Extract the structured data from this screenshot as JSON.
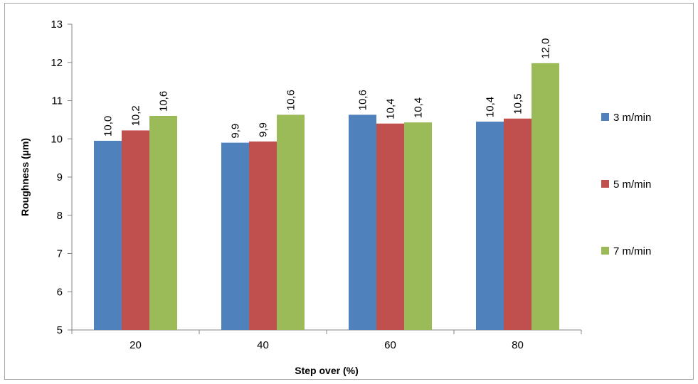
{
  "chart_data": {
    "type": "bar",
    "title": "",
    "xlabel": "Step over (%)",
    "ylabel": "Roughness (µm)",
    "categories": [
      "20",
      "40",
      "60",
      "80"
    ],
    "series": [
      {
        "name": "3 m/min",
        "color": "#4f81bd",
        "values": [
          9.95,
          9.9,
          10.63,
          10.45
        ],
        "labels": [
          "10,0",
          "9,9",
          "10,6",
          "10,4"
        ]
      },
      {
        "name": "5 m/min",
        "color": "#c0504d",
        "values": [
          10.22,
          9.93,
          10.4,
          10.53
        ],
        "labels": [
          "10,2",
          "9,9",
          "10,4",
          "10,5"
        ]
      },
      {
        "name": "7 m/min",
        "color": "#9bbb59",
        "values": [
          10.6,
          10.63,
          10.43,
          11.98
        ],
        "labels": [
          "10,6",
          "10,6",
          "10,4",
          "12,0"
        ]
      }
    ],
    "ylim": [
      5,
      13
    ],
    "yticks": [
      "5",
      "6",
      "7",
      "8",
      "9",
      "10",
      "11",
      "12",
      "13"
    ],
    "grid": false,
    "legend_position": "right"
  }
}
